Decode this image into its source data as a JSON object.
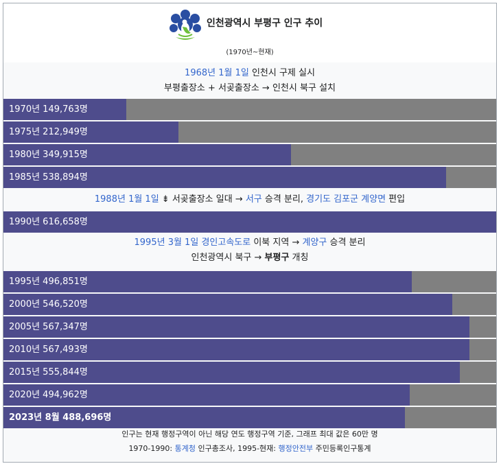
{
  "header": {
    "title": "인천광역시 부평구 인구 추이",
    "range": "(1970년~현재)",
    "logo_icon": "bupyeong-gu-emblem-icon"
  },
  "notes": {
    "n1968": {
      "date_link": "1968년 1월 1일",
      "text1": " 인천시 구제 실시",
      "line2": "부평출장소 + 서곶출장소 → 인천시 북구 설치"
    },
    "n1988": {
      "date_link": "1988년 1월 1일",
      "mid": " ⇟ 서곶출장소 일대 → ",
      "seogu_link": "서구",
      "mid2": " 승격 분리, ",
      "gimpo_link": "경기도 김포군 계양면",
      "tail": " 편입"
    },
    "n1995": {
      "date_link": "1995년 3월 1일",
      "sp": " ",
      "road_link": "경인고속도로",
      "mid": " 이북 지역 → ",
      "gyeyang_link": "계양구",
      "tail": " 승격 분리",
      "line2_a": "인천광역시 북구 → ",
      "line2_b": "부평구",
      "line2_c": " 개칭"
    }
  },
  "footer": {
    "line1": "인구는 현재 행정구역이 아닌 해당 연도 행정구역 기준, 그래프 최대 값은 60만 명",
    "line2_a": "1970-1990: ",
    "stat_link": "통계청",
    "line2_b": " 인구총조사, 1995-현재: ",
    "mois_link": "행정안전부",
    "line2_c": " 주민등록인구통계"
  },
  "colors": {
    "bar": "#4e4c8c",
    "track": "#808080",
    "link": "#3366cc"
  },
  "chart_data": {
    "type": "bar",
    "orientation": "horizontal",
    "title": "인천광역시 부평구 인구 추이",
    "subtitle": "(1970년~현재)",
    "xlim": [
      0,
      600000
    ],
    "categories": [
      "1970",
      "1975",
      "1980",
      "1985",
      "1990",
      "1995",
      "2000",
      "2005",
      "2010",
      "2015",
      "2020",
      "2023년 8월"
    ],
    "values": [
      149763,
      212949,
      349915,
      538894,
      616658,
      496851,
      546520,
      567347,
      567493,
      555844,
      494962,
      488696
    ],
    "labels": [
      "1970년 149,763명",
      "1975년 212,949명",
      "1980년 349,915명",
      "1985년 538,894명",
      "1990년 616,658명",
      "1995년 496,851명",
      "2000년 546,520명",
      "2005년 567,347명",
      "2010년 567,493명",
      "2015년 555,844명",
      "2020년 494,962명",
      "2023년 8월 488,696명"
    ]
  }
}
